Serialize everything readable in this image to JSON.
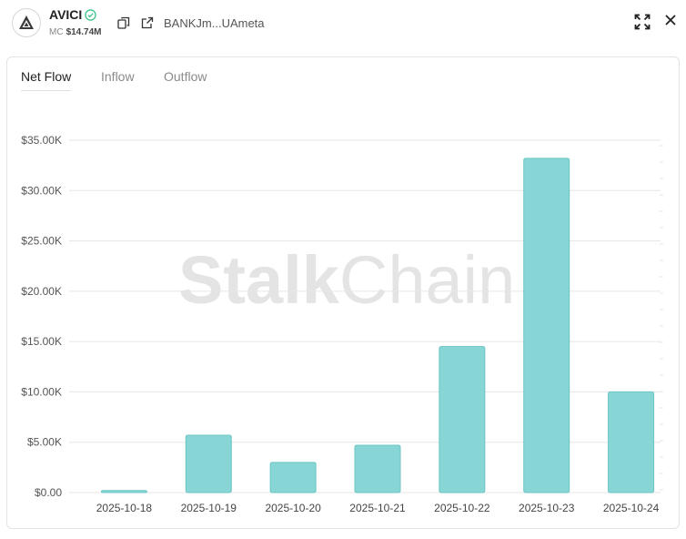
{
  "header": {
    "token_name": "AVICI",
    "mc_label": "MC",
    "mc_value": "$14.74M",
    "address": "BANKJm...UAmeta",
    "icons": [
      "logo-icon",
      "verified-icon",
      "copy-icon",
      "external-link-icon",
      "expand-icon",
      "close-icon"
    ]
  },
  "tabs": [
    {
      "label": "Net Flow",
      "active": true
    },
    {
      "label": "Inflow",
      "active": false
    },
    {
      "label": "Outflow",
      "active": false
    }
  ],
  "watermark": {
    "bold": "Stalk",
    "light": "Chain"
  },
  "colors": {
    "bar_fill": "#87d6d5",
    "bar_stroke": "#6cc6c4",
    "grid": "#e6e6e6",
    "verified": "#3cc48a"
  },
  "chart_data": {
    "type": "bar",
    "categories": [
      "2025-10-18",
      "2025-10-19",
      "2025-10-20",
      "2025-10-21",
      "2025-10-22",
      "2025-10-23",
      "2025-10-24"
    ],
    "values": [
      200,
      5700,
      3000,
      4700,
      14500,
      33200,
      10000
    ],
    "ylim": [
      0,
      35000
    ],
    "yticks": [
      "$0.00",
      "$5.00K",
      "$10.00K",
      "$15.00K",
      "$20.00K",
      "$25.00K",
      "$30.00K",
      "$35.00K"
    ],
    "grid": true
  }
}
